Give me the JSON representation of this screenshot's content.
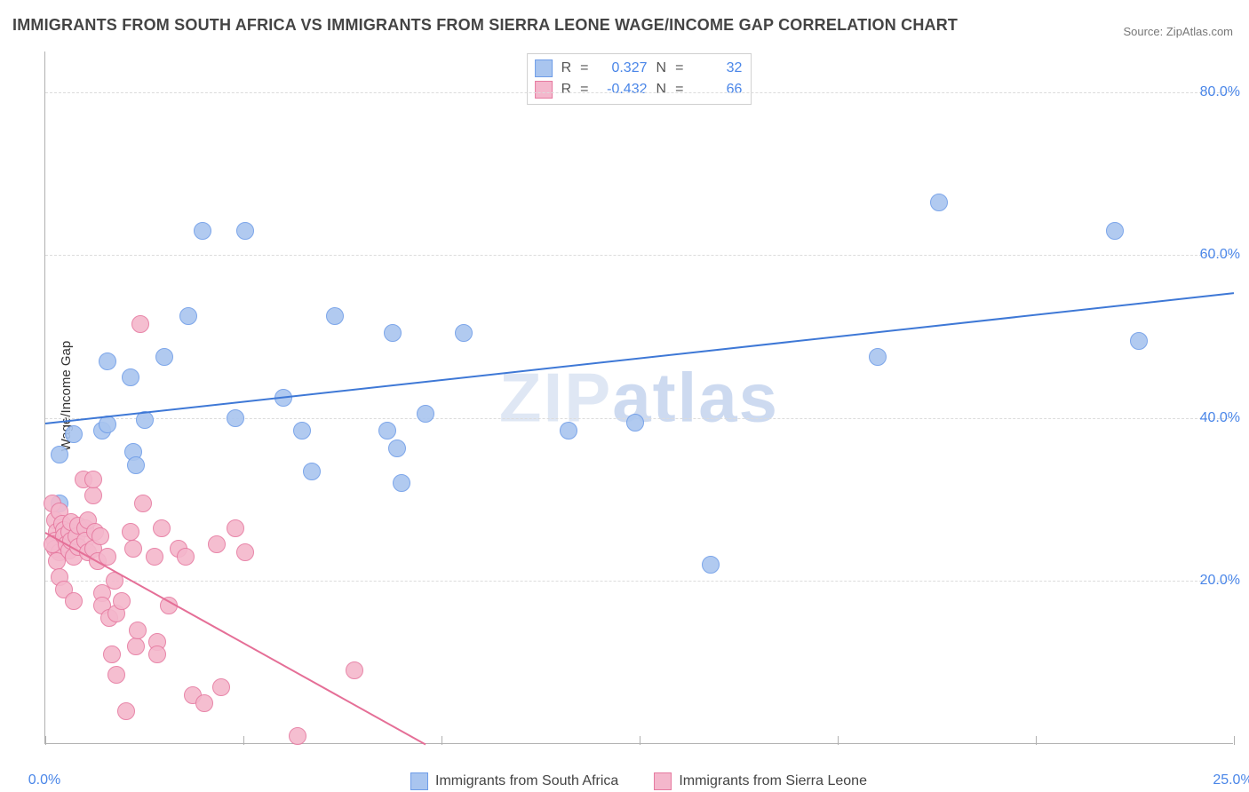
{
  "title": "IMMIGRANTS FROM SOUTH AFRICA VS IMMIGRANTS FROM SIERRA LEONE WAGE/INCOME GAP CORRELATION CHART",
  "source": "Source: ZipAtlas.com",
  "ylabel": "Wage/Income Gap",
  "watermark_a": "ZIP",
  "watermark_b": "atlas",
  "chart": {
    "type": "scatter",
    "xlim": [
      0,
      25
    ],
    "ylim": [
      0,
      85
    ],
    "xtick_labels": [
      "0.0%",
      "25.0%"
    ],
    "ytick_values": [
      20,
      40,
      60,
      80
    ],
    "ytick_labels": [
      "20.0%",
      "40.0%",
      "60.0%",
      "80.0%"
    ],
    "x_minor_tick_step": 4.1667,
    "background_color": "#ffffff",
    "grid_color": "#dcdcdc",
    "grid_dash": true,
    "axis_color": "#b1b1b1",
    "tick_label_color": "#4a86e8",
    "point_radius": 9,
    "point_border_width": 1.3,
    "point_fill_opacity": 0.28,
    "trend_line_width": 2
  },
  "series": [
    {
      "name": "Immigrants from South Africa",
      "color_border": "#6f9de8",
      "color_fill": "#a9c5ef",
      "trend_color": "#3e78d6",
      "R": "0.327",
      "N": "32",
      "trend": {
        "x1": 0,
        "y1": 39.5,
        "x2": 25,
        "y2": 55.5
      },
      "points": [
        [
          0.3,
          35.5
        ],
        [
          0.3,
          29.5
        ],
        [
          0.6,
          38.0
        ],
        [
          1.2,
          38.5
        ],
        [
          1.3,
          39.2
        ],
        [
          1.3,
          47.0
        ],
        [
          1.8,
          45.0
        ],
        [
          1.85,
          35.8
        ],
        [
          1.9,
          34.2
        ],
        [
          2.1,
          39.8
        ],
        [
          2.5,
          47.5
        ],
        [
          3.0,
          52.5
        ],
        [
          3.3,
          63.0
        ],
        [
          4.2,
          63.0
        ],
        [
          4.0,
          40.0
        ],
        [
          5.0,
          42.5
        ],
        [
          5.4,
          38.5
        ],
        [
          5.6,
          33.5
        ],
        [
          6.1,
          52.5
        ],
        [
          7.3,
          50.5
        ],
        [
          7.2,
          38.5
        ],
        [
          7.4,
          36.3
        ],
        [
          7.5,
          32.0
        ],
        [
          8.8,
          50.5
        ],
        [
          8.0,
          40.5
        ],
        [
          11.0,
          38.5
        ],
        [
          12.4,
          39.5
        ],
        [
          14.0,
          22.0
        ],
        [
          17.5,
          47.5
        ],
        [
          18.8,
          66.5
        ],
        [
          22.5,
          63.0
        ],
        [
          23.0,
          49.5
        ]
      ]
    },
    {
      "name": "Immigrants from Sierra Leone",
      "color_border": "#e67aa0",
      "color_fill": "#f4b7cc",
      "trend_color": "#e56f97",
      "R": "-0.432",
      "N": "66",
      "trend": {
        "x1": 0,
        "y1": 26.0,
        "x2": 8.0,
        "y2": 0
      },
      "points": [
        [
          0.15,
          29.5
        ],
        [
          0.2,
          27.5
        ],
        [
          0.25,
          26.0
        ],
        [
          0.2,
          25.0
        ],
        [
          0.2,
          24.0
        ],
        [
          0.3,
          23.5
        ],
        [
          0.25,
          22.5
        ],
        [
          0.15,
          24.5
        ],
        [
          0.3,
          28.5
        ],
        [
          0.35,
          27.0
        ],
        [
          0.4,
          26.3
        ],
        [
          0.4,
          25.5
        ],
        [
          0.45,
          24.5
        ],
        [
          0.5,
          23.8
        ],
        [
          0.5,
          26.0
        ],
        [
          0.55,
          27.2
        ],
        [
          0.55,
          25.0
        ],
        [
          0.6,
          23.0
        ],
        [
          0.65,
          25.5
        ],
        [
          0.7,
          24.2
        ],
        [
          0.7,
          26.8
        ],
        [
          0.3,
          20.5
        ],
        [
          0.4,
          19.0
        ],
        [
          0.6,
          17.5
        ],
        [
          0.8,
          32.5
        ],
        [
          0.85,
          26.5
        ],
        [
          0.85,
          25.0
        ],
        [
          0.9,
          23.5
        ],
        [
          0.9,
          27.5
        ],
        [
          1.0,
          24.0
        ],
        [
          1.0,
          30.5
        ],
        [
          1.0,
          32.5
        ],
        [
          1.05,
          26.0
        ],
        [
          1.1,
          22.5
        ],
        [
          1.15,
          25.5
        ],
        [
          1.2,
          18.5
        ],
        [
          1.2,
          17.0
        ],
        [
          1.3,
          23.0
        ],
        [
          1.35,
          15.5
        ],
        [
          1.4,
          11.0
        ],
        [
          1.45,
          20.0
        ],
        [
          1.5,
          16.0
        ],
        [
          1.5,
          8.5
        ],
        [
          1.6,
          17.5
        ],
        [
          1.7,
          4.0
        ],
        [
          1.8,
          26.0
        ],
        [
          1.85,
          24.0
        ],
        [
          1.9,
          12.0
        ],
        [
          1.95,
          14.0
        ],
        [
          2.0,
          51.5
        ],
        [
          2.05,
          29.5
        ],
        [
          2.3,
          23.0
        ],
        [
          2.35,
          12.5
        ],
        [
          2.35,
          11.0
        ],
        [
          2.45,
          26.5
        ],
        [
          2.6,
          17.0
        ],
        [
          2.8,
          24.0
        ],
        [
          2.95,
          23.0
        ],
        [
          3.1,
          6.0
        ],
        [
          3.35,
          5.0
        ],
        [
          3.6,
          24.5
        ],
        [
          3.7,
          7.0
        ],
        [
          4.2,
          23.5
        ],
        [
          5.3,
          1.0
        ],
        [
          6.5,
          9.0
        ],
        [
          4.0,
          26.5
        ]
      ]
    }
  ],
  "legend_bottom": [
    "Immigrants from South Africa",
    "Immigrants from Sierra Leone"
  ]
}
